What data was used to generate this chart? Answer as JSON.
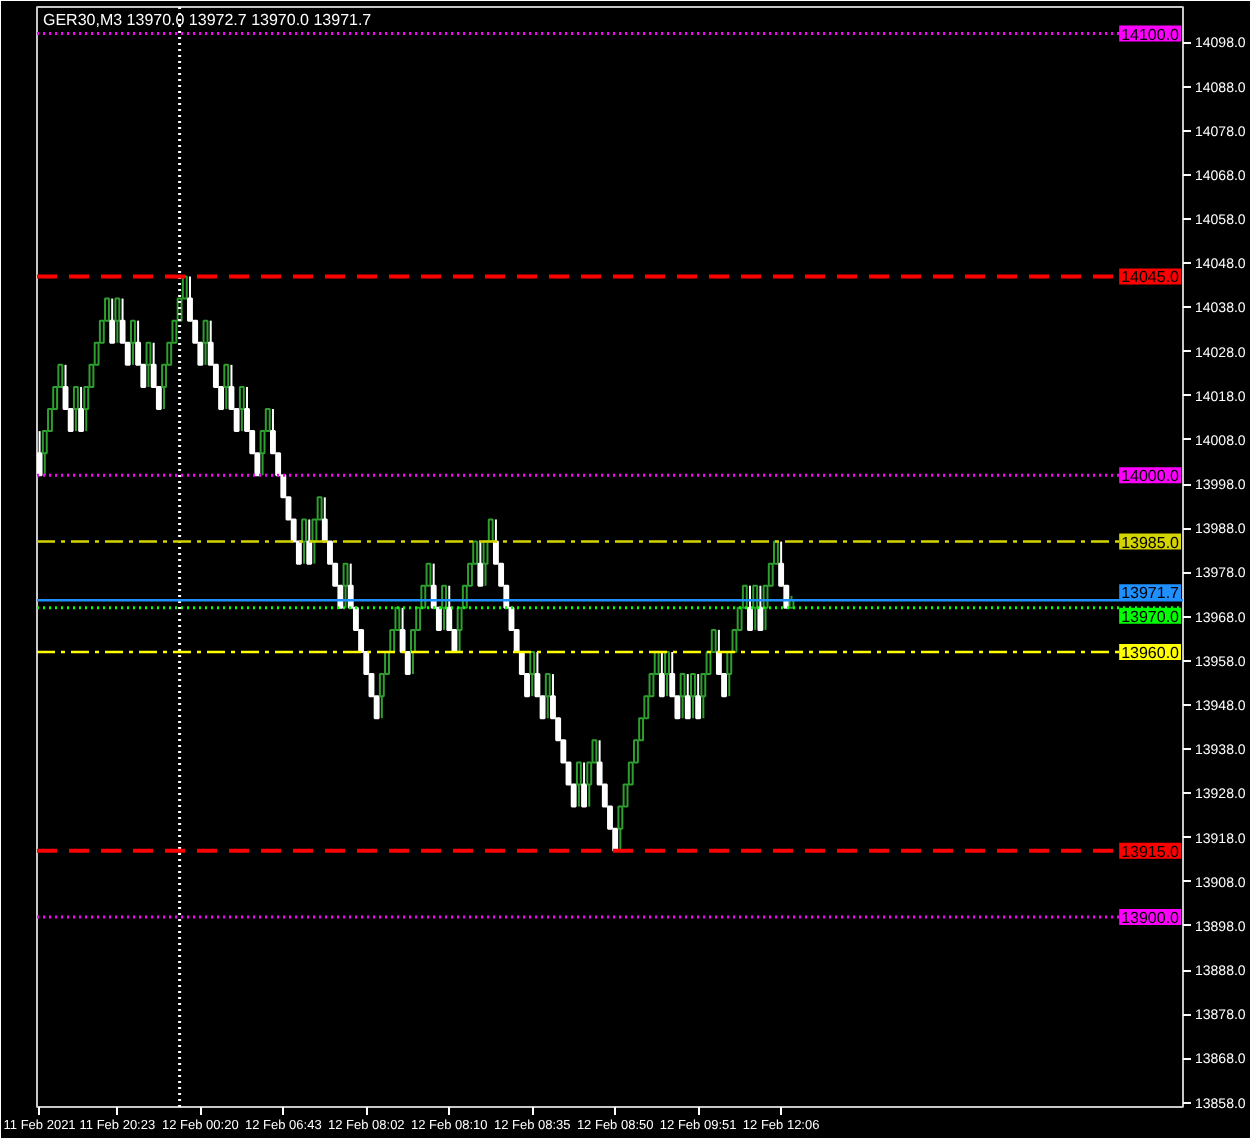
{
  "chart_data": {
    "type": "candlestick",
    "title": "GER30,M3 13970.0 13972.7 13970.0 13971.7",
    "categories": [
      "11 Feb 2021",
      null,
      null,
      null,
      null,
      null,
      null,
      null,
      null,
      null,
      null,
      null,
      null,
      null,
      null,
      "11 Feb 20:23",
      null,
      null,
      null,
      null,
      null,
      null,
      null,
      null,
      null,
      null,
      null,
      null,
      null,
      null,
      null,
      "12 Feb 00:20",
      null,
      null,
      null,
      null,
      null,
      null,
      null,
      null,
      null,
      null,
      null,
      null,
      null,
      null,
      null,
      "12 Feb 06:43",
      null,
      null,
      null,
      null,
      null,
      null,
      null,
      null,
      null,
      null,
      null,
      null,
      null,
      null,
      null,
      "12 Feb 08:02",
      null,
      null,
      null,
      null,
      null,
      null,
      null,
      null,
      null,
      null,
      null,
      null,
      null,
      null,
      null,
      "12 Feb 08:10",
      null,
      null,
      null,
      null,
      null,
      null,
      null,
      null,
      null,
      null,
      null,
      null,
      null,
      null,
      null,
      "12 Feb 08:35",
      null,
      null,
      null,
      null,
      null,
      null,
      null,
      null,
      null,
      null,
      null,
      null,
      null,
      null,
      null,
      "12 Feb 08:50",
      null,
      null,
      null,
      null,
      null,
      null,
      null,
      null,
      null,
      null,
      null,
      null,
      null,
      null,
      null,
      "12 Feb 09:51",
      null,
      null,
      null,
      null,
      null,
      null,
      null,
      null,
      null,
      null,
      null,
      null,
      null,
      null,
      null,
      "12 Feb 12:06",
      null,
      null,
      null,
      null,
      null,
      null,
      null,
      null,
      null,
      null,
      null,
      null,
      null,
      null,
      null,
      null,
      null,
      null,
      null,
      null,
      null,
      null,
      null,
      null,
      null,
      null,
      null,
      null,
      null,
      null,
      null,
      null,
      null,
      null,
      null,
      null,
      null,
      null,
      null,
      null,
      null,
      null,
      null,
      null,
      null,
      null,
      null,
      null,
      null,
      null,
      null,
      null,
      null,
      null,
      null,
      null,
      null,
      null,
      null,
      null,
      null,
      null,
      null,
      null,
      null,
      null,
      null,
      null,
      null,
      null,
      null,
      null,
      null,
      null,
      null,
      null,
      null
    ],
    "ohlc": [
      [
        14005,
        14010,
        14000,
        14000
      ],
      [
        14005,
        14010,
        14000,
        14010
      ],
      [
        14010,
        14015,
        14010,
        14015
      ],
      [
        14015,
        14020,
        14015,
        14020
      ],
      [
        14020,
        14025,
        14020,
        14025
      ],
      [
        14020,
        14025,
        14015,
        14015
      ],
      [
        14015,
        14015,
        14010,
        14010
      ],
      [
        14015,
        14020,
        14010,
        14020
      ],
      [
        14015,
        14020,
        14010,
        14010
      ],
      [
        14015,
        14020,
        14010,
        14020
      ],
      [
        14020,
        14025,
        14020,
        14025
      ],
      [
        14025,
        14030,
        14025,
        14030
      ],
      [
        14030,
        14035,
        14030,
        14035
      ],
      [
        14035,
        14040,
        14035,
        14040
      ],
      [
        14035,
        14040,
        14030,
        14030
      ],
      [
        14035,
        14040,
        14030,
        14040
      ],
      [
        14035,
        14040,
        14030,
        14030
      ],
      [
        14030,
        14030,
        14025,
        14025
      ],
      [
        14030,
        14035,
        14025,
        14035
      ],
      [
        14030,
        14035,
        14025,
        14025
      ],
      [
        14025,
        14025,
        14020,
        14020
      ],
      [
        14025,
        14030,
        14020,
        14030
      ],
      [
        14025,
        14030,
        14020,
        14020
      ],
      [
        14020,
        14020,
        14015,
        14015
      ],
      [
        14020,
        14025,
        14015,
        14025
      ],
      [
        14025,
        14030,
        14025,
        14030
      ],
      [
        14030,
        14035,
        14030,
        14035
      ],
      [
        14035,
        14040,
        14035,
        14040
      ],
      [
        14040,
        14045,
        14040,
        14045
      ],
      [
        14040,
        14045,
        14035,
        14035
      ],
      [
        14035,
        14035,
        14030,
        14030
      ],
      [
        14030,
        14030,
        14025,
        14025
      ],
      [
        14030,
        14035,
        14025,
        14035
      ],
      [
        14030,
        14035,
        14025,
        14025
      ],
      [
        14025,
        14025,
        14020,
        14020
      ],
      [
        14020,
        14020,
        14015,
        14015
      ],
      [
        14020,
        14025,
        14015,
        14025
      ],
      [
        14020,
        14025,
        14015,
        14015
      ],
      [
        14015,
        14015,
        14010,
        14010
      ],
      [
        14015,
        14020,
        14010,
        14020
      ],
      [
        14015,
        14020,
        14010,
        14010
      ],
      [
        14010,
        14010,
        14005,
        14005
      ],
      [
        14005,
        14005,
        14000,
        14000
      ],
      [
        14005,
        14010,
        14000,
        14010
      ],
      [
        14010,
        14015,
        14010,
        14015
      ],
      [
        14010,
        14015,
        14005,
        14005
      ],
      [
        14005,
        14005,
        14000,
        14000
      ],
      [
        14000,
        14000,
        13995,
        13995
      ],
      [
        13995,
        13995,
        13990,
        13990
      ],
      [
        13990,
        13990,
        13985,
        13985
      ],
      [
        13985,
        13985,
        13980,
        13980
      ],
      [
        13985,
        13990,
        13980,
        13990
      ],
      [
        13985,
        13990,
        13980,
        13980
      ],
      [
        13985,
        13990,
        13980,
        13990
      ],
      [
        13990,
        13995,
        13990,
        13995
      ],
      [
        13990,
        13995,
        13985,
        13985
      ],
      [
        13985,
        13985,
        13980,
        13980
      ],
      [
        13980,
        13980,
        13975,
        13975
      ],
      [
        13975,
        13975,
        13970,
        13970
      ],
      [
        13975,
        13980,
        13970,
        13980
      ],
      [
        13975,
        13980,
        13970,
        13970
      ],
      [
        13970,
        13970,
        13965,
        13965
      ],
      [
        13965,
        13965,
        13960,
        13960
      ],
      [
        13960,
        13960,
        13955,
        13955
      ],
      [
        13955,
        13955,
        13950,
        13950
      ],
      [
        13950,
        13950,
        13945,
        13945
      ],
      [
        13950,
        13955,
        13945,
        13955
      ],
      [
        13955,
        13960,
        13955,
        13960
      ],
      [
        13960,
        13965,
        13960,
        13965
      ],
      [
        13965,
        13970,
        13965,
        13970
      ],
      [
        13965,
        13970,
        13960,
        13960
      ],
      [
        13960,
        13960,
        13955,
        13955
      ],
      [
        13960,
        13965,
        13955,
        13965
      ],
      [
        13965,
        13970,
        13965,
        13970
      ],
      [
        13970,
        13975,
        13970,
        13975
      ],
      [
        13975,
        13980,
        13975,
        13980
      ],
      [
        13975,
        13980,
        13970,
        13970
      ],
      [
        13970,
        13970,
        13965,
        13965
      ],
      [
        13970,
        13975,
        13965,
        13975
      ],
      [
        13970,
        13975,
        13965,
        13965
      ],
      [
        13965,
        13965,
        13960,
        13960
      ],
      [
        13965,
        13970,
        13960,
        13970
      ],
      [
        13970,
        13975,
        13970,
        13975
      ],
      [
        13975,
        13980,
        13975,
        13980
      ],
      [
        13980,
        13985,
        13980,
        13985
      ],
      [
        13980,
        13985,
        13975,
        13975
      ],
      [
        13980,
        13985,
        13975,
        13985
      ],
      [
        13985,
        13990,
        13985,
        13990
      ],
      [
        13985,
        13990,
        13980,
        13980
      ],
      [
        13980,
        13980,
        13975,
        13975
      ],
      [
        13975,
        13975,
        13970,
        13970
      ],
      [
        13970,
        13970,
        13965,
        13965
      ],
      [
        13965,
        13965,
        13960,
        13960
      ],
      [
        13960,
        13960,
        13955,
        13955
      ],
      [
        13955,
        13955,
        13950,
        13950
      ],
      [
        13955,
        13960,
        13950,
        13960
      ],
      [
        13955,
        13960,
        13950,
        13950
      ],
      [
        13950,
        13950,
        13945,
        13945
      ],
      [
        13950,
        13955,
        13945,
        13955
      ],
      [
        13950,
        13955,
        13945,
        13945
      ],
      [
        13945,
        13945,
        13940,
        13940
      ],
      [
        13940,
        13940,
        13935,
        13935
      ],
      [
        13935,
        13935,
        13930,
        13930
      ],
      [
        13930,
        13930,
        13925,
        13925
      ],
      [
        13930,
        13935,
        13925,
        13935
      ],
      [
        13930,
        13935,
        13925,
        13925
      ],
      [
        13930,
        13935,
        13925,
        13935
      ],
      [
        13935,
        13940,
        13935,
        13940
      ],
      [
        13935,
        13940,
        13930,
        13930
      ],
      [
        13930,
        13930,
        13925,
        13925
      ],
      [
        13925,
        13925,
        13920,
        13920
      ],
      [
        13920,
        13920,
        13915,
        13915
      ],
      [
        13920,
        13925,
        13915,
        13925
      ],
      [
        13925,
        13930,
        13925,
        13930
      ],
      [
        13930,
        13935,
        13930,
        13935
      ],
      [
        13935,
        13940,
        13935,
        13940
      ],
      [
        13940,
        13945,
        13940,
        13945
      ],
      [
        13945,
        13950,
        13945,
        13950
      ],
      [
        13950,
        13955,
        13950,
        13955
      ],
      [
        13955,
        13960,
        13955,
        13960
      ],
      [
        13955,
        13960,
        13950,
        13950
      ],
      [
        13955,
        13960,
        13950,
        13960
      ],
      [
        13955,
        13960,
        13950,
        13950
      ],
      [
        13950,
        13950,
        13945,
        13945
      ],
      [
        13950,
        13955,
        13945,
        13955
      ],
      [
        13950,
        13955,
        13945,
        13945
      ],
      [
        13950,
        13955,
        13945,
        13955
      ],
      [
        13950,
        13955,
        13945,
        13945
      ],
      [
        13950,
        13955,
        13945,
        13955
      ],
      [
        13955,
        13960,
        13955,
        13960
      ],
      [
        13960,
        13965,
        13960,
        13965
      ],
      [
        13960,
        13965,
        13955,
        13955
      ],
      [
        13955,
        13955,
        13950,
        13950
      ],
      [
        13955,
        13960,
        13950,
        13960
      ],
      [
        13960,
        13965,
        13960,
        13965
      ],
      [
        13965,
        13970,
        13965,
        13970
      ],
      [
        13970,
        13975,
        13970,
        13975
      ],
      [
        13970,
        13975,
        13965,
        13965
      ],
      [
        13970,
        13975,
        13965,
        13975
      ],
      [
        13970,
        13975,
        13965,
        13965
      ],
      [
        13970,
        13975,
        13965,
        13975
      ],
      [
        13975,
        13980,
        13975,
        13980
      ],
      [
        13980,
        13985,
        13980,
        13985
      ],
      [
        13980,
        13985,
        13975,
        13975
      ],
      [
        13975,
        13975,
        13970,
        13970
      ],
      [
        13970,
        13972.7,
        13970,
        13971.7
      ],
      null,
      null,
      null,
      null,
      null,
      null,
      null,
      null,
      null,
      null,
      null,
      null,
      null,
      null,
      null,
      null,
      null,
      null,
      null,
      null,
      null,
      null,
      null,
      null,
      null,
      null,
      null,
      null,
      null,
      null,
      null,
      null,
      null,
      null,
      null,
      null,
      null,
      null,
      null,
      null,
      null,
      null,
      null,
      null,
      null,
      null,
      null,
      null,
      null,
      null,
      null,
      null,
      null,
      null,
      null,
      null,
      null,
      null,
      null,
      null,
      null,
      null,
      null,
      null,
      null,
      null,
      null,
      null,
      null,
      null,
      null,
      null,
      null,
      null,
      null
    ],
    "colors": [
      "#ffffff",
      "#2e9e2e",
      "#2e9e2e",
      "#2e9e2e",
      "#2e9e2e",
      "#ffffff",
      "#ffffff",
      "#2e9e2e",
      "#ffffff",
      "#2e9e2e",
      "#2e9e2e",
      "#2e9e2e",
      "#2e9e2e",
      "#2e9e2e",
      "#ffffff",
      "#2e9e2e",
      "#ffffff",
      "#ffffff",
      "#2e9e2e",
      "#ffffff",
      "#ffffff",
      "#2e9e2e",
      "#ffffff",
      "#ffffff",
      "#2e9e2e",
      "#2e9e2e",
      "#2e9e2e",
      "#2e9e2e",
      "#2e9e2e",
      "#ffffff",
      "#ffffff",
      "#ffffff",
      "#2e9e2e",
      "#ffffff",
      "#ffffff",
      "#ffffff",
      "#2e9e2e",
      "#ffffff",
      "#ffffff",
      "#2e9e2e",
      "#ffffff",
      "#ffffff",
      "#ffffff",
      "#2e9e2e",
      "#2e9e2e",
      "#ffffff",
      "#ffffff",
      "#ffffff",
      "#ffffff",
      "#ffffff",
      "#ffffff",
      "#2e9e2e",
      "#ffffff",
      "#2e9e2e",
      "#2e9e2e",
      "#ffffff",
      "#ffffff",
      "#ffffff",
      "#ffffff",
      "#2e9e2e",
      "#ffffff",
      "#ffffff",
      "#ffffff",
      "#ffffff",
      "#ffffff",
      "#ffffff",
      "#2e9e2e",
      "#2e9e2e",
      "#2e9e2e",
      "#2e9e2e",
      "#ffffff",
      "#ffffff",
      "#2e9e2e",
      "#2e9e2e",
      "#2e9e2e",
      "#2e9e2e",
      "#ffffff",
      "#ffffff",
      "#2e9e2e",
      "#ffffff",
      "#ffffff",
      "#2e9e2e",
      "#2e9e2e",
      "#2e9e2e",
      "#2e9e2e",
      "#ffffff",
      "#2e9e2e",
      "#2e9e2e",
      "#ffffff",
      "#ffffff",
      "#ffffff",
      "#ffffff",
      "#ffffff",
      "#ffffff",
      "#ffffff",
      "#2e9e2e",
      "#ffffff",
      "#ffffff",
      "#2e9e2e",
      "#ffffff",
      "#ffffff",
      "#ffffff",
      "#ffffff",
      "#ffffff",
      "#2e9e2e",
      "#ffffff",
      "#2e9e2e",
      "#2e9e2e",
      "#ffffff",
      "#ffffff",
      "#ffffff",
      "#ffffff",
      "#2e9e2e",
      "#2e9e2e",
      "#2e9e2e",
      "#2e9e2e",
      "#2e9e2e",
      "#2e9e2e",
      "#2e9e2e",
      "#2e9e2e",
      "#ffffff",
      "#2e9e2e",
      "#ffffff",
      "#ffffff",
      "#2e9e2e",
      "#ffffff",
      "#2e9e2e",
      "#ffffff",
      "#2e9e2e",
      "#2e9e2e",
      "#2e9e2e",
      "#ffffff",
      "#ffffff",
      "#2e9e2e",
      "#2e9e2e",
      "#2e9e2e",
      "#2e9e2e",
      "#ffffff",
      "#2e9e2e",
      "#ffffff",
      "#2e9e2e",
      "#2e9e2e",
      "#2e9e2e",
      "#ffffff",
      "#ffffff",
      "#2e9e2e",
      null,
      null,
      null,
      null,
      null,
      null,
      null,
      null,
      null,
      null,
      null,
      null,
      null,
      null,
      null,
      null,
      null,
      null,
      null,
      null,
      null,
      null,
      null,
      null,
      null,
      null,
      null,
      null,
      null,
      null,
      null,
      null,
      null,
      null,
      null,
      null,
      null,
      null,
      null,
      null,
      null,
      null,
      null,
      null,
      null,
      null,
      null,
      null,
      null,
      null,
      null,
      null,
      null,
      null,
      null,
      null,
      null,
      null,
      null,
      null,
      null,
      null,
      null,
      null,
      null,
      null,
      null,
      null,
      null,
      null,
      null,
      null,
      null,
      null,
      null
    ],
    "ylim": [
      13857,
      14106
    ],
    "yticks": [
      {
        "value": 13858,
        "label": "13858.0"
      },
      {
        "value": 13868,
        "label": "13868.0"
      },
      {
        "value": 13878,
        "label": "13878.0"
      },
      {
        "value": 13888,
        "label": "13888.0"
      },
      {
        "value": 13898,
        "label": "13898.0"
      },
      {
        "value": 13908,
        "label": "13908.0"
      },
      {
        "value": 13918,
        "label": "13918.0"
      },
      {
        "value": 13928,
        "label": "13928.0"
      },
      {
        "value": 13938,
        "label": "13938.0"
      },
      {
        "value": 13948,
        "label": "13948.0"
      },
      {
        "value": 13958,
        "label": "13958.0"
      },
      {
        "value": 13968,
        "label": "13968.0"
      },
      {
        "value": 13978,
        "label": "13978.0"
      },
      {
        "value": 13988,
        "label": "13988.0"
      },
      {
        "value": 13998,
        "label": "13998.0"
      },
      {
        "value": 14008,
        "label": "14008.0"
      },
      {
        "value": 14018,
        "label": "14018.0"
      },
      {
        "value": 14028,
        "label": "14028.0"
      },
      {
        "value": 14038,
        "label": "14038.0"
      },
      {
        "value": 14048,
        "label": "14048.0"
      },
      {
        "value": 14058,
        "label": "14058.0"
      },
      {
        "value": 14068,
        "label": "14068.0"
      },
      {
        "value": 14078,
        "label": "14078.0"
      },
      {
        "value": 14088,
        "label": "14088.0"
      },
      {
        "value": 14098,
        "label": "14098.0"
      }
    ],
    "ref_lines": [
      {
        "axis": "y",
        "value": 14100,
        "label": "14100.0",
        "color": "#ff00ff",
        "line_style": "dotted"
      },
      {
        "axis": "y",
        "value": 14045,
        "label": "14045.0",
        "color": "#ff0000",
        "line_style": "dashed"
      },
      {
        "axis": "y",
        "value": 14000,
        "label": "14000.0",
        "color": "#ff00ff",
        "line_style": "dotted"
      },
      {
        "axis": "y",
        "value": 13985,
        "label": "13985.0",
        "color": "#d4d400",
        "line_style": "dashdot"
      },
      {
        "axis": "y",
        "value": 13971.7,
        "label": "13971.7",
        "color": "#1e90ff",
        "line_style": "solid"
      },
      {
        "axis": "y",
        "value": 13970,
        "label": "13970.0",
        "color": "#00ff00",
        "line_style": "dotted"
      },
      {
        "axis": "y",
        "value": 13960,
        "label": "13960.0",
        "color": "#ffff00",
        "line_style": "dashdot"
      },
      {
        "axis": "y",
        "value": 13915,
        "label": "13915.0",
        "color": "#ff0000",
        "line_style": "dashed"
      },
      {
        "axis": "y",
        "value": 13900,
        "label": "13900.0",
        "color": "#ff00ff",
        "line_style": "dotted"
      }
    ],
    "grid": false
  }
}
